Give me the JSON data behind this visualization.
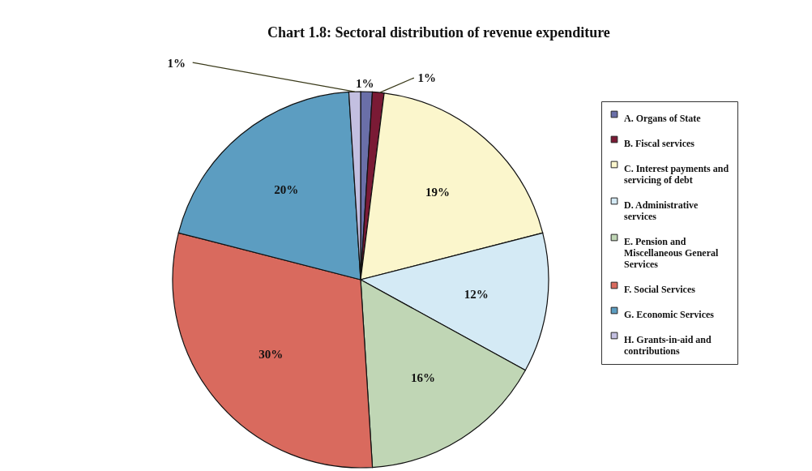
{
  "chart_data": {
    "type": "pie",
    "title": "Chart 1.8: Sectoral distribution of revenue expenditure",
    "categories": [
      "A. Organs of State",
      "B. Fiscal services",
      "C. Interest payments and servicing of debt",
      "D. Administrative services",
      "E. Pension and Miscellaneous General Services",
      "F. Social Services",
      "G. Economic Services",
      "H. Grants-in-aid and contributions"
    ],
    "values": [
      1,
      1,
      19,
      12,
      16,
      30,
      20,
      1
    ],
    "colors": [
      "#6a6fa8",
      "#7a1a35",
      "#fbf6cc",
      "#d4eaf5",
      "#c0d6b5",
      "#d96a5e",
      "#5c9dc1",
      "#c3bfe0"
    ],
    "value_labels": [
      "1%",
      "1%",
      "19%",
      "12%",
      "16%",
      "30%",
      "20%",
      "1%"
    ],
    "legend": "right"
  }
}
